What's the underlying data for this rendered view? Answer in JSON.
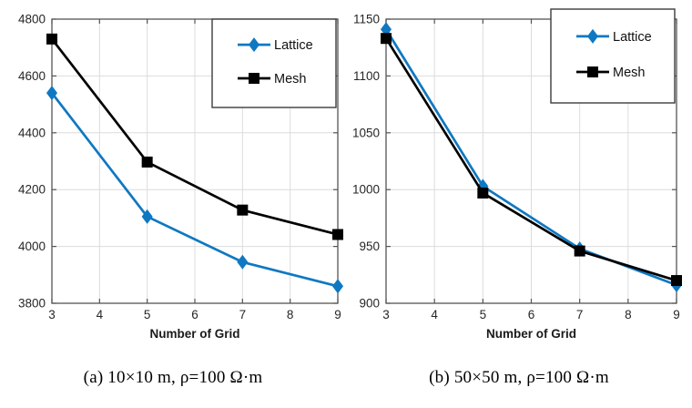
{
  "page": {
    "background": "#ffffff"
  },
  "styles": {
    "lattice_blue": "#0f78c2",
    "mesh_black": "#000000",
    "grid_color": "#dcdcdc",
    "axis_color": "#555555",
    "tick_label_color": "#262626",
    "legend_border_color": "#3c3c3c",
    "legend_bg": "#ffffff"
  },
  "chart_data": [
    {
      "id": "a",
      "type": "line",
      "title": "",
      "xlabel": "Number of Grid",
      "ylabel": "",
      "x": [
        3,
        5,
        7,
        9
      ],
      "xticks": [
        3,
        4,
        5,
        6,
        7,
        8,
        9
      ],
      "yticks": [
        3800,
        4000,
        4200,
        4400,
        4600,
        4800
      ],
      "xlim": [
        3,
        9
      ],
      "ylim": [
        3800,
        4800
      ],
      "grid": true,
      "legend_position": "top-right",
      "series": [
        {
          "name": "Lattice",
          "color": "#0f78c2",
          "marker": "diamond",
          "values": [
            4540,
            4105,
            3945,
            3860
          ]
        },
        {
          "name": "Mesh",
          "color": "#000000",
          "marker": "square",
          "values": [
            4730,
            4297,
            4128,
            4042
          ]
        }
      ],
      "caption": "(a)  10×10 m,  ρ=100 Ω·m"
    },
    {
      "id": "b",
      "type": "line",
      "title": "",
      "xlabel": "Number of Grid",
      "ylabel": "",
      "x": [
        3,
        5,
        7,
        9
      ],
      "xticks": [
        3,
        4,
        5,
        6,
        7,
        8,
        9
      ],
      "yticks": [
        900,
        950,
        1000,
        1050,
        1100,
        1150
      ],
      "xlim": [
        3,
        9
      ],
      "ylim": [
        900,
        1150
      ],
      "grid": true,
      "legend_position": "top-right",
      "series": [
        {
          "name": "Lattice",
          "color": "#0f78c2",
          "marker": "diamond",
          "values": [
            1141,
            1003,
            948,
            916
          ]
        },
        {
          "name": "Mesh",
          "color": "#000000",
          "marker": "square",
          "values": [
            1133,
            997,
            946,
            920
          ]
        }
      ],
      "caption": "(b)  50×50 m,  ρ=100 Ω·m"
    }
  ]
}
